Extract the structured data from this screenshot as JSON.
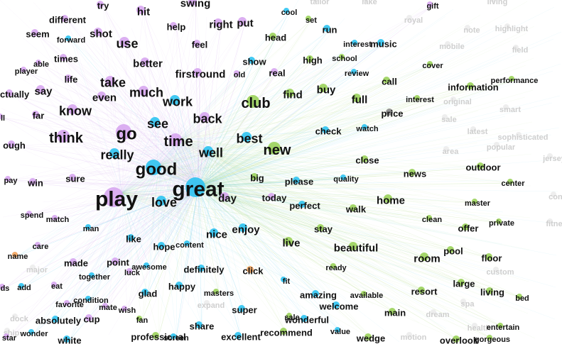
{
  "colors": {
    "purple": "#d7a6ef",
    "blue": "#2ec3f1",
    "green": "#9ad15a",
    "orange": "#f0a25c",
    "gray": "#8a8a8a",
    "faded": "#eeeeee",
    "edge_blue": "#7fd4f0",
    "edge_purple": "#d9b4ef",
    "edge_green": "#bfe29a"
  },
  "words": [
    {
      "t": "try",
      "g": "p",
      "s": 1
    },
    {
      "t": "swing",
      "g": "p",
      "s": 2
    },
    {
      "t": "hit",
      "g": "p",
      "s": 2
    },
    {
      "t": "gift",
      "g": "p",
      "s": 0
    },
    {
      "t": "different",
      "g": "p",
      "s": 1
    },
    {
      "t": "seem",
      "g": "p",
      "s": 1
    },
    {
      "t": "forward",
      "g": "b",
      "s": 0
    },
    {
      "t": "shot",
      "g": "p",
      "s": 2
    },
    {
      "t": "help",
      "g": "p",
      "s": 1
    },
    {
      "t": "right",
      "g": "p",
      "s": 2
    },
    {
      "t": "put",
      "g": "p",
      "s": 2
    },
    {
      "t": "cool",
      "g": "b",
      "s": 0
    },
    {
      "t": "set",
      "g": "g",
      "s": 0
    },
    {
      "t": "head",
      "g": "g",
      "s": 1
    },
    {
      "t": "run",
      "g": "b",
      "s": 1
    },
    {
      "t": "use",
      "g": "p",
      "s": 3
    },
    {
      "t": "feel",
      "g": "p",
      "s": 1
    },
    {
      "t": "times",
      "g": "p",
      "s": 1
    },
    {
      "t": "able",
      "g": "p",
      "s": 0
    },
    {
      "t": "player",
      "g": "p",
      "s": 0
    },
    {
      "t": "better",
      "g": "p",
      "s": 2
    },
    {
      "t": "show",
      "g": "b",
      "s": 1
    },
    {
      "t": "high",
      "g": "g",
      "s": 1
    },
    {
      "t": "school",
      "g": "g",
      "s": 0
    },
    {
      "t": "interest",
      "g": "b",
      "s": 0
    },
    {
      "t": "music",
      "g": "b",
      "s": 1
    },
    {
      "t": "firstround",
      "g": "p",
      "s": 2
    },
    {
      "t": "old",
      "g": "p",
      "s": 0
    },
    {
      "t": "real",
      "g": "p",
      "s": 1
    },
    {
      "t": "review",
      "g": "b",
      "s": 0
    },
    {
      "t": "cover",
      "g": "g",
      "s": 0
    },
    {
      "t": "life",
      "g": "p",
      "s": 1
    },
    {
      "t": "take",
      "g": "p",
      "s": 3
    },
    {
      "t": "say",
      "g": "p",
      "s": 2
    },
    {
      "t": "much",
      "g": "p",
      "s": 3
    },
    {
      "t": "even",
      "g": "p",
      "s": 2
    },
    {
      "t": "actually",
      "g": "p",
      "s": 1
    },
    {
      "t": "buy",
      "g": "g",
      "s": 2
    },
    {
      "t": "call",
      "g": "g",
      "s": 1
    },
    {
      "t": "performance",
      "g": "g",
      "s": 0
    },
    {
      "t": "information",
      "g": "g",
      "s": 1
    },
    {
      "t": "work",
      "g": "b",
      "s": 3
    },
    {
      "t": "club",
      "g": "g",
      "s": 4
    },
    {
      "t": "find",
      "g": "g",
      "s": 2
    },
    {
      "t": "full",
      "g": "g",
      "s": 2
    },
    {
      "t": "interest",
      "g": "g",
      "s": 0
    },
    {
      "t": "know",
      "g": "p",
      "s": 3
    },
    {
      "t": "far",
      "g": "p",
      "s": 1
    },
    {
      "t": "see",
      "g": "b",
      "s": 3
    },
    {
      "t": "back",
      "g": "p",
      "s": 3
    },
    {
      "t": "price",
      "g": "x",
      "s": 1
    },
    {
      "t": "go",
      "g": "p",
      "s": 5
    },
    {
      "t": "time",
      "g": "p",
      "s": 4
    },
    {
      "t": "check",
      "g": "b",
      "s": 1
    },
    {
      "t": "watch",
      "g": "b",
      "s": 0
    },
    {
      "t": "ough",
      "g": "p",
      "s": 1
    },
    {
      "t": "think",
      "g": "p",
      "s": 4
    },
    {
      "t": "best",
      "g": "b",
      "s": 3
    },
    {
      "t": "new",
      "g": "g",
      "s": 4
    },
    {
      "t": "well",
      "g": "b",
      "s": 3
    },
    {
      "t": "really",
      "g": "b",
      "s": 3
    },
    {
      "t": "close",
      "g": "g",
      "s": 1
    },
    {
      "t": "good",
      "g": "b",
      "s": 5
    },
    {
      "t": "outdoor",
      "g": "g",
      "s": 1
    },
    {
      "t": "news",
      "g": "g",
      "s": 1
    },
    {
      "t": "quality",
      "g": "b",
      "s": 0
    },
    {
      "t": "center",
      "g": "g",
      "s": 0
    },
    {
      "t": "pay",
      "g": "p",
      "s": 0
    },
    {
      "t": "win",
      "g": "p",
      "s": 1
    },
    {
      "t": "sure",
      "g": "p",
      "s": 1
    },
    {
      "t": "big",
      "g": "g",
      "s": 1
    },
    {
      "t": "please",
      "g": "b",
      "s": 1
    },
    {
      "t": "play",
      "g": "p",
      "s": 6
    },
    {
      "t": "great",
      "g": "b",
      "s": 6
    },
    {
      "t": "day",
      "g": "p",
      "s": 2
    },
    {
      "t": "today",
      "g": "p",
      "s": 1
    },
    {
      "t": "perfect",
      "g": "b",
      "s": 1
    },
    {
      "t": "home",
      "g": "g",
      "s": 2
    },
    {
      "t": "walk",
      "g": "g",
      "s": 1
    },
    {
      "t": "master",
      "g": "g",
      "s": 0
    },
    {
      "t": "love",
      "g": "b",
      "s": 3
    },
    {
      "t": "spend",
      "g": "p",
      "s": 0
    },
    {
      "t": "match",
      "g": "p",
      "s": 0
    },
    {
      "t": "clean",
      "g": "g",
      "s": 0
    },
    {
      "t": "private",
      "g": "g",
      "s": 0
    },
    {
      "t": "man",
      "g": "b",
      "s": 0
    },
    {
      "t": "offer",
      "g": "g",
      "s": 1
    },
    {
      "t": "enjoy",
      "g": "b",
      "s": 2
    },
    {
      "t": "stay",
      "g": "g",
      "s": 1
    },
    {
      "t": "like",
      "g": "b",
      "s": 1
    },
    {
      "t": "nice",
      "g": "b",
      "s": 2
    },
    {
      "t": "care",
      "g": "p",
      "s": 0
    },
    {
      "t": "hope",
      "g": "b",
      "s": 1
    },
    {
      "t": "content",
      "g": "b",
      "s": 0
    },
    {
      "t": "live",
      "g": "g",
      "s": 2
    },
    {
      "t": "beautiful",
      "g": "g",
      "s": 2
    },
    {
      "t": "pool",
      "g": "g",
      "s": 1
    },
    {
      "t": "name",
      "g": "o",
      "s": 0
    },
    {
      "t": "made",
      "g": "p",
      "s": 1
    },
    {
      "t": "point",
      "g": "p",
      "s": 1
    },
    {
      "t": "awesome",
      "g": "b",
      "s": 0
    },
    {
      "t": "definitely",
      "g": "b",
      "s": 1
    },
    {
      "t": "room",
      "g": "g",
      "s": 2
    },
    {
      "t": "floor",
      "g": "g",
      "s": 1
    },
    {
      "t": "together",
      "g": "b",
      "s": 0
    },
    {
      "t": "luck",
      "g": "p",
      "s": 0
    },
    {
      "t": "click",
      "g": "o",
      "s": 1
    },
    {
      "t": "ready",
      "g": "g",
      "s": 0
    },
    {
      "t": "large",
      "g": "g",
      "s": 1
    },
    {
      "t": "fit",
      "g": "b",
      "s": 0
    },
    {
      "t": "add",
      "g": "b",
      "s": 0
    },
    {
      "t": "eat",
      "g": "p",
      "s": 0
    },
    {
      "t": "happy",
      "g": "b",
      "s": 1
    },
    {
      "t": "masters",
      "g": "g",
      "s": 0
    },
    {
      "t": "resort",
      "g": "g",
      "s": 1
    },
    {
      "t": "living",
      "g": "g",
      "s": 1
    },
    {
      "t": "glad",
      "g": "b",
      "s": 1
    },
    {
      "t": "amazing",
      "g": "b",
      "s": 1
    },
    {
      "t": "available",
      "g": "g",
      "s": 0
    },
    {
      "t": "bed",
      "g": "g",
      "s": 0
    },
    {
      "t": "favorite",
      "g": "p",
      "s": 0
    },
    {
      "t": "condition",
      "g": "b",
      "s": 0
    },
    {
      "t": "mate",
      "g": "p",
      "s": 0
    },
    {
      "t": "wish",
      "g": "p",
      "s": 0
    },
    {
      "t": "welcome",
      "g": "b",
      "s": 1
    },
    {
      "t": "super",
      "g": "b",
      "s": 1
    },
    {
      "t": "main",
      "g": "g",
      "s": 1
    },
    {
      "t": "absolutely",
      "g": "b",
      "s": 1
    },
    {
      "t": "cup",
      "g": "p",
      "s": 1
    },
    {
      "t": "fan",
      "g": "g",
      "s": 0
    },
    {
      "t": "sale",
      "g": "g",
      "s": 0
    },
    {
      "t": "wonderful",
      "g": "b",
      "s": 1
    },
    {
      "t": "share",
      "g": "b",
      "s": 1
    },
    {
      "t": "value",
      "g": "b",
      "s": 0
    },
    {
      "t": "entertain",
      "g": "g",
      "s": 0
    },
    {
      "t": "wonder",
      "g": "b",
      "s": 0
    },
    {
      "t": "professional",
      "g": "g",
      "s": 1
    },
    {
      "t": "screen",
      "g": "b",
      "s": 0
    },
    {
      "t": "excellent",
      "g": "b",
      "s": 1
    },
    {
      "t": "recommend",
      "g": "g",
      "s": 1
    },
    {
      "t": "wedge",
      "g": "g",
      "s": 1
    },
    {
      "t": "overlook",
      "g": "g",
      "s": 1
    },
    {
      "t": "gorgeous",
      "g": "g",
      "s": 0
    },
    {
      "t": "white",
      "g": "b",
      "s": 1
    },
    {
      "t": "star",
      "g": "p",
      "s": 0
    },
    {
      "t": "ds",
      "g": "p",
      "s": 0
    },
    {
      "t": "ll",
      "g": "p",
      "s": 0
    }
  ],
  "faded_words": [
    "royal",
    "note",
    "highlight",
    "mobile",
    "field",
    "original",
    "smart",
    "sale",
    "latest",
    "sophisticated",
    "popular",
    "area",
    "jersey",
    "major",
    "dream",
    "health",
    "spa",
    "expand",
    "custom",
    "conc",
    "fitne",
    "dock",
    "ship",
    "motion",
    "tailor",
    "lake",
    "living"
  ]
}
